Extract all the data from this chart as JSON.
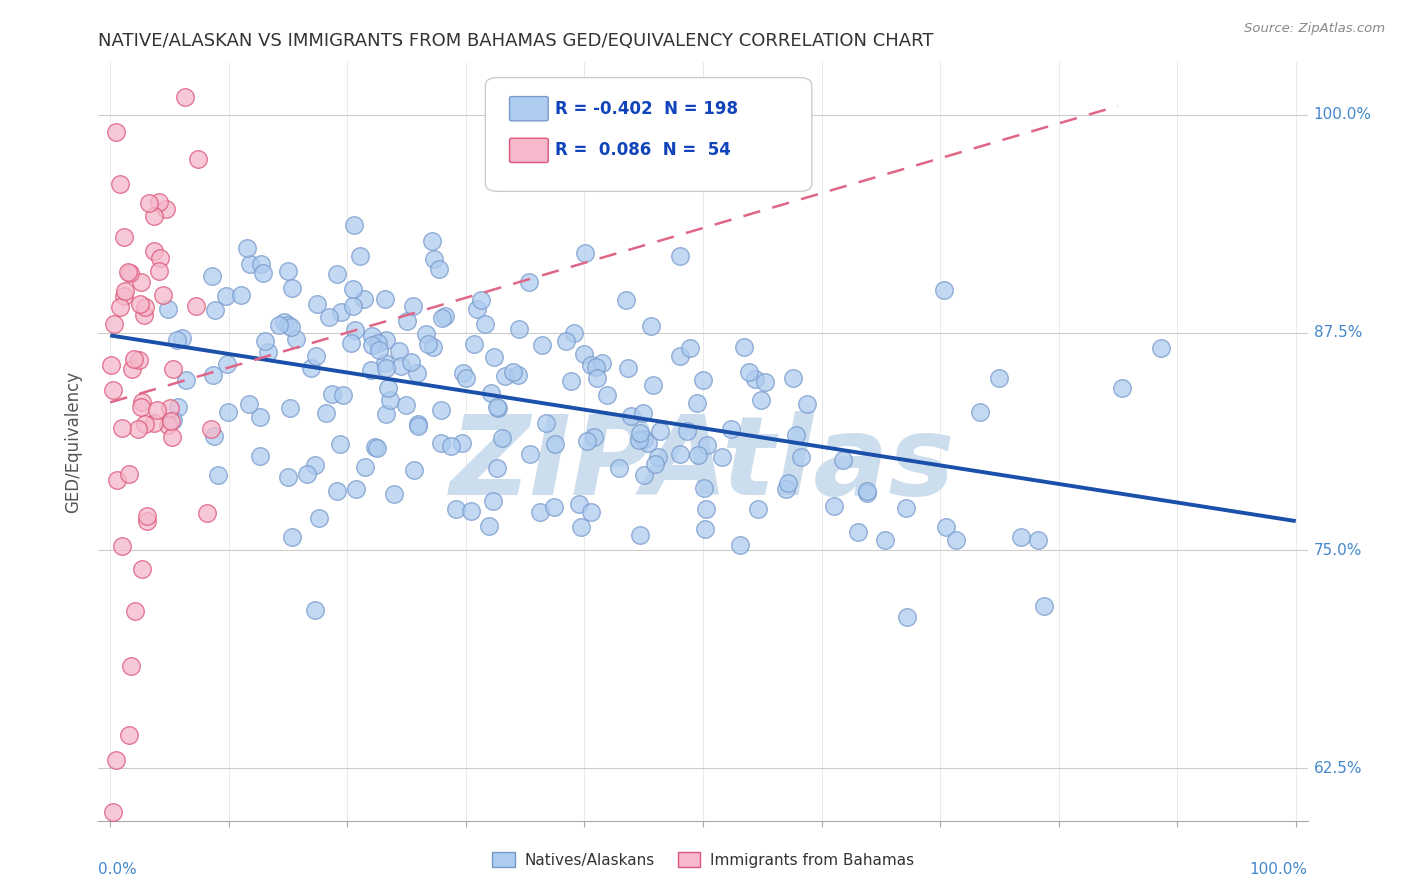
{
  "title": "NATIVE/ALASKAN VS IMMIGRANTS FROM BAHAMAS GED/EQUIVALENCY CORRELATION CHART",
  "source": "Source: ZipAtlas.com",
  "ylabel": "GED/Equivalency",
  "yticks": [
    0.625,
    0.75,
    0.875,
    1.0
  ],
  "ytick_labels": [
    "62.5%",
    "75.0%",
    "87.5%",
    "100.0%"
  ],
  "xlim": [
    -0.01,
    1.01
  ],
  "ylim": [
    0.595,
    1.03
  ],
  "blue_R": -0.402,
  "blue_N": 198,
  "pink_R": 0.086,
  "pink_N": 54,
  "blue_color": "#aeccf0",
  "blue_line_color": "#1a4faa",
  "pink_color": "#f5b8cc",
  "pink_line_color": "#e06688",
  "blue_edge": "#7799cc",
  "pink_edge": "#dd5577",
  "watermark": "ZIPAtlas",
  "watermark_color": "#ccdded",
  "title_color": "#333333",
  "grid_color": "#cccccc",
  "tick_label_color": "#4488cc",
  "seed_blue": 42,
  "seed_pink": 99
}
